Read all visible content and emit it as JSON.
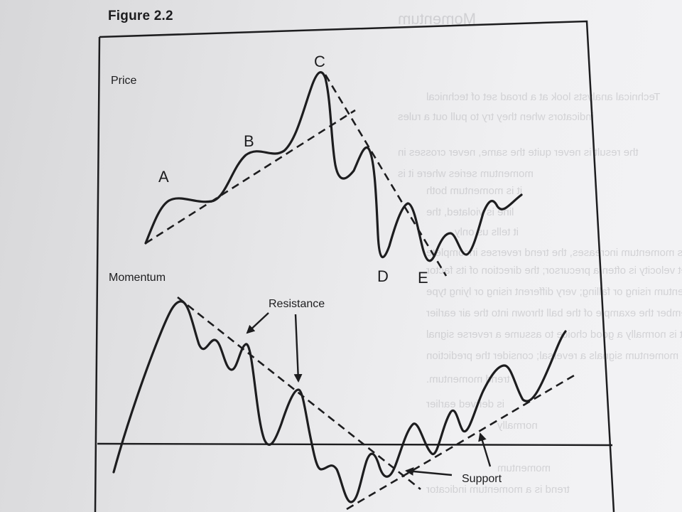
{
  "figure": {
    "title": "Figure 2.2"
  },
  "price_panel": {
    "label": "Price",
    "points": {
      "a": "A",
      "b": "B",
      "c": "C",
      "d": "D",
      "e": "E"
    }
  },
  "momentum_panel": {
    "label": "Momentum",
    "resistance_label": "Resistance",
    "support_label": "Support"
  },
  "colors": {
    "ink": "#1d1d1f",
    "paper": "#ececee",
    "bleed_through": "#b9b9bd"
  }
}
